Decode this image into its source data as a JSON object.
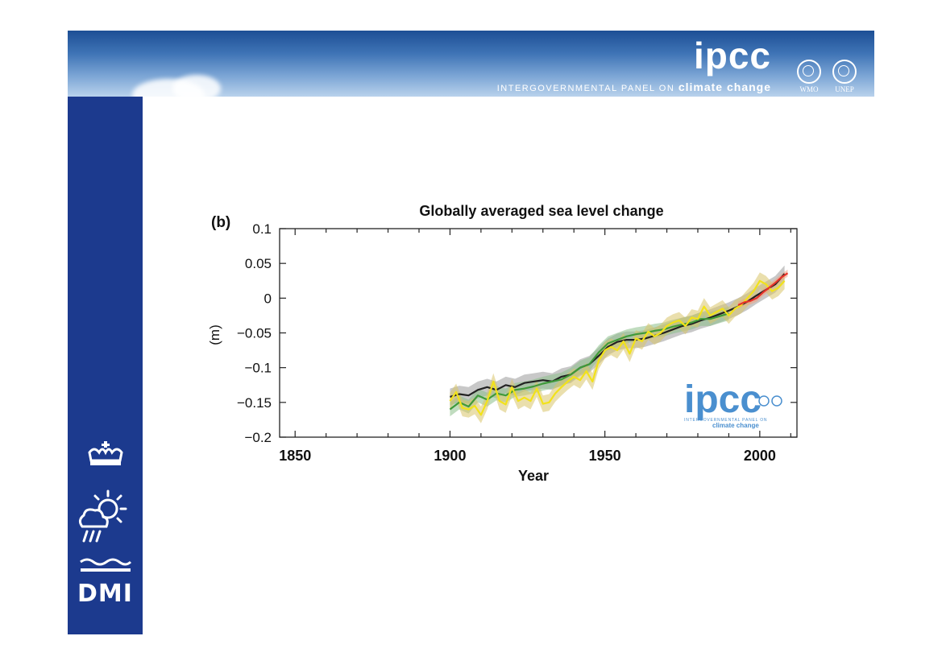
{
  "header": {
    "logo_text": "ipcc",
    "subtitle_prefix": "INTERGOVERNMENTAL PANEL ON",
    "subtitle_emphasis": "climate change",
    "org_logos": [
      {
        "name": "wmo-logo",
        "label": "WMO"
      },
      {
        "name": "unep-logo",
        "label": "UNEP"
      }
    ]
  },
  "sidebar": {
    "brand_text": "DMI",
    "icons": [
      "crown-icon",
      "sun-cloud-rain-icon",
      "waves-icon"
    ]
  },
  "watermark": {
    "text": "ipcc",
    "subtitle_prefix": "INTERGOVERNMENTAL PANEL ON",
    "subtitle_emphasis": "climate change"
  },
  "colors": {
    "banner_blue": "#2a5ea6",
    "sidebar_blue": "#1c3a8e",
    "series_black": "#222222",
    "series_green": "#3f9a3a",
    "series_yellow": "#f2e21a",
    "series_red": "#e8332a",
    "band_grey": "#9a9a9a",
    "band_green": "#8cc08a",
    "band_yellow": "#d9c56a",
    "watermark_blue": "#4a8fcf"
  },
  "chart_data": {
    "type": "line",
    "panel_label": "(b)",
    "title": "Globally averaged sea level change",
    "xlabel": "Year",
    "ylabel": "(m)",
    "xlim": [
      1845,
      2012
    ],
    "ylim": [
      -0.2,
      0.1
    ],
    "xticks": [
      1850,
      1900,
      1950,
      2000
    ],
    "yticks": [
      0.1,
      0.05,
      0,
      -0.05,
      -0.1,
      -0.15,
      -0.2
    ],
    "ytick_labels": [
      "0.1",
      "0.05",
      "0",
      "−0.05",
      "−0.1",
      "−0.15",
      "−0.2"
    ],
    "grid": false,
    "series": [
      {
        "color": "#222222",
        "band_color": "#9a9a9a",
        "uncertainty": 0.012,
        "x": [
          1900,
          1903,
          1906,
          1909,
          1912,
          1915,
          1918,
          1921,
          1924,
          1927,
          1930,
          1933,
          1936,
          1939,
          1942,
          1945,
          1948,
          1951,
          1954,
          1957,
          1960,
          1963,
          1966,
          1969,
          1972,
          1975,
          1978,
          1981,
          1984,
          1987,
          1990,
          1993,
          1996,
          1999,
          2002,
          2005,
          2008
        ],
        "y": [
          -0.142,
          -0.138,
          -0.14,
          -0.132,
          -0.128,
          -0.132,
          -0.125,
          -0.128,
          -0.122,
          -0.12,
          -0.118,
          -0.12,
          -0.113,
          -0.11,
          -0.1,
          -0.095,
          -0.083,
          -0.07,
          -0.063,
          -0.06,
          -0.06,
          -0.058,
          -0.054,
          -0.05,
          -0.045,
          -0.04,
          -0.037,
          -0.032,
          -0.028,
          -0.023,
          -0.018,
          -0.012,
          -0.005,
          0.004,
          0.012,
          0.02,
          0.035
        ]
      },
      {
        "color": "#3f9a3a",
        "band_color": "#8cc08a",
        "uncertainty": 0.01,
        "x": [
          1900,
          1903,
          1906,
          1909,
          1912,
          1915,
          1918,
          1921,
          1924,
          1927,
          1930,
          1933,
          1936,
          1939,
          1942,
          1945,
          1948,
          1951,
          1954,
          1957,
          1960,
          1963,
          1966,
          1969,
          1972,
          1975,
          1978,
          1981,
          1984,
          1987,
          1990
        ],
        "y": [
          -0.16,
          -0.15,
          -0.156,
          -0.14,
          -0.146,
          -0.137,
          -0.14,
          -0.132,
          -0.13,
          -0.127,
          -0.123,
          -0.12,
          -0.117,
          -0.11,
          -0.1,
          -0.095,
          -0.078,
          -0.065,
          -0.06,
          -0.055,
          -0.052,
          -0.05,
          -0.047,
          -0.045,
          -0.041,
          -0.038,
          -0.035,
          -0.03,
          -0.03,
          -0.026,
          -0.022
        ]
      },
      {
        "color": "#f2e21a",
        "band_color": "#d9c56a",
        "uncertainty": 0.012,
        "x": [
          1900,
          1902,
          1904,
          1906,
          1908,
          1910,
          1912,
          1914,
          1916,
          1918,
          1920,
          1922,
          1924,
          1926,
          1928,
          1930,
          1932,
          1934,
          1936,
          1938,
          1940,
          1942,
          1944,
          1946,
          1948,
          1950,
          1952,
          1954,
          1956,
          1958,
          1960,
          1962,
          1964,
          1966,
          1968,
          1970,
          1972,
          1974,
          1976,
          1978,
          1980,
          1982,
          1984,
          1986,
          1988,
          1990,
          1992,
          1994,
          1996,
          1998,
          2000,
          2002,
          2004,
          2006,
          2008
        ],
        "y": [
          -0.148,
          -0.135,
          -0.158,
          -0.16,
          -0.155,
          -0.168,
          -0.148,
          -0.12,
          -0.148,
          -0.153,
          -0.128,
          -0.148,
          -0.143,
          -0.148,
          -0.13,
          -0.152,
          -0.15,
          -0.137,
          -0.128,
          -0.12,
          -0.113,
          -0.118,
          -0.105,
          -0.12,
          -0.09,
          -0.075,
          -0.07,
          -0.075,
          -0.062,
          -0.08,
          -0.058,
          -0.062,
          -0.048,
          -0.055,
          -0.05,
          -0.04,
          -0.035,
          -0.032,
          -0.04,
          -0.028,
          -0.03,
          -0.012,
          -0.025,
          -0.02,
          -0.015,
          -0.025,
          -0.015,
          -0.01,
          0.0,
          0.01,
          0.025,
          0.02,
          0.01,
          0.015,
          0.025
        ]
      },
      {
        "color": "#e8332a",
        "band_color": "#f0a080",
        "uncertainty": 0.005,
        "x": [
          1993,
          1995,
          1997,
          1999,
          2001,
          2003,
          2005,
          2007,
          2009
        ],
        "y": [
          -0.01,
          -0.006,
          -0.004,
          0.0,
          0.008,
          0.015,
          0.022,
          0.03,
          0.036
        ]
      }
    ]
  }
}
